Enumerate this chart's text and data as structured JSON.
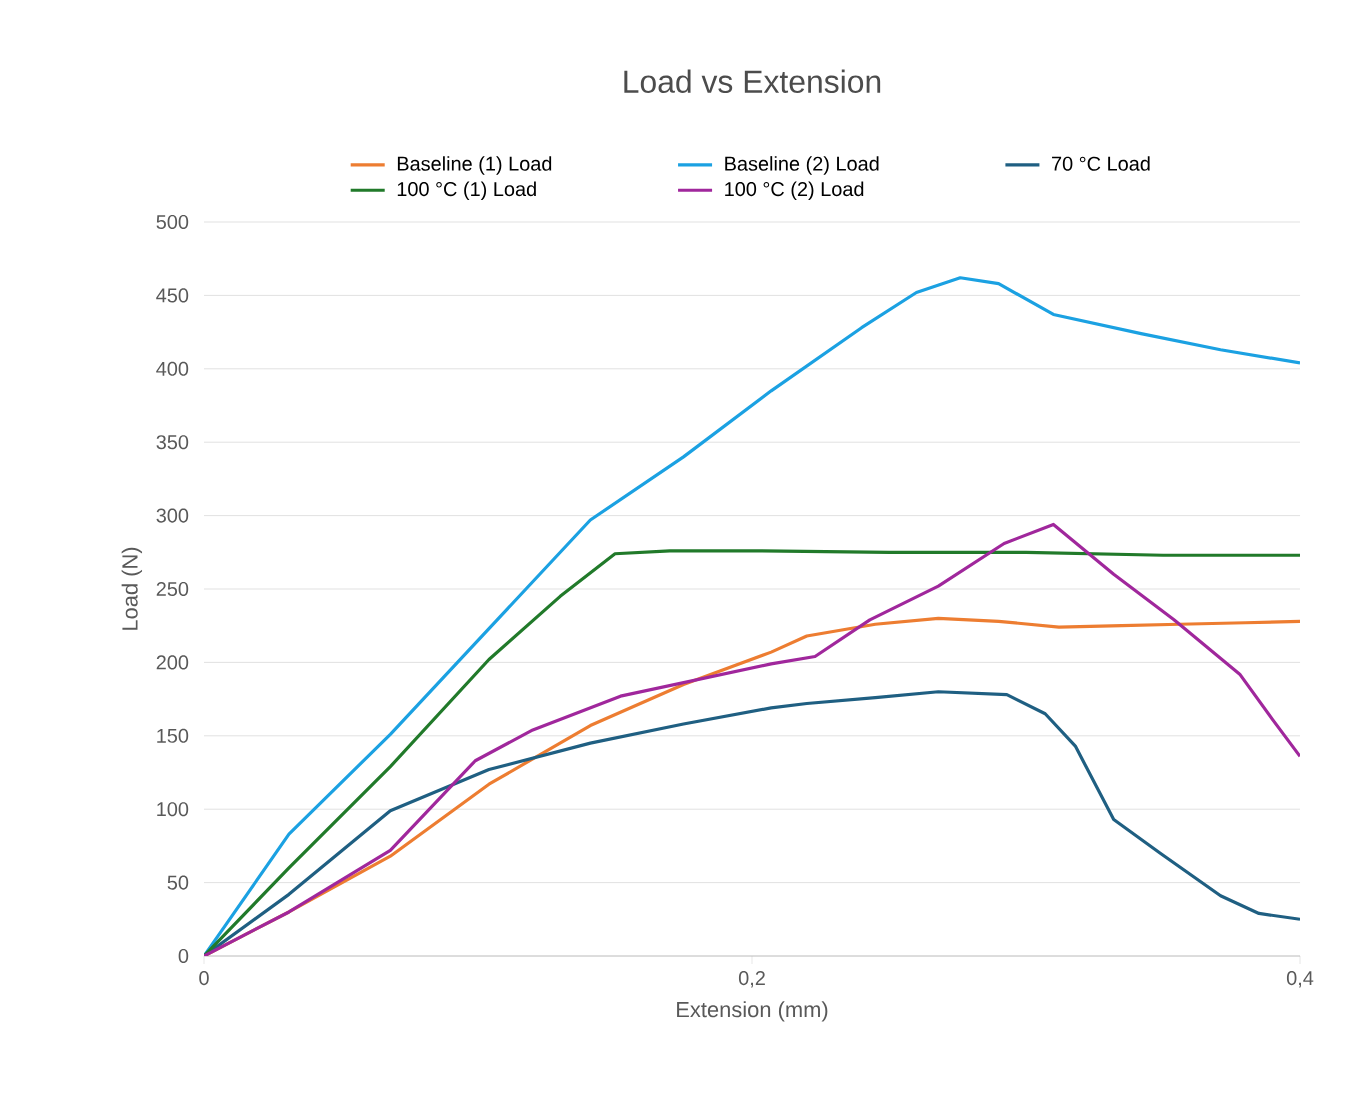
{
  "chart_data": {
    "type": "line",
    "title": "Load vs Extension",
    "xlabel": "Extension (mm)",
    "ylabel": "Load (N)",
    "xlim": [
      0,
      0.4
    ],
    "xticks": [
      0,
      {
        "value": 0.2,
        "label": "0,2"
      },
      {
        "value": 0.4,
        "label": "0,4"
      }
    ],
    "ylim": [
      0,
      500
    ],
    "yticks": [
      0,
      50,
      100,
      150,
      200,
      250,
      300,
      350,
      400,
      450,
      500
    ],
    "grid": "y",
    "legend": "top",
    "marker": "none",
    "line_style": "solid",
    "series": [
      {
        "name": "Baseline (1) Load",
        "color": "#ed7d31",
        "x": [
          0,
          0.031,
          0.068,
          0.104,
          0.141,
          0.175,
          0.207,
          0.22,
          0.245,
          0.268,
          0.29,
          0.312,
          0.335,
          0.356,
          0.38,
          0.4
        ],
        "values": [
          0,
          30,
          68,
          117,
          157,
          185,
          207,
          218,
          226,
          230,
          228,
          224,
          225,
          226,
          227,
          228
        ]
      },
      {
        "name": "Baseline (2) Load",
        "color": "#1ba1e2",
        "x": [
          0,
          0.031,
          0.068,
          0.1,
          0.141,
          0.175,
          0.207,
          0.24,
          0.26,
          0.276,
          0.29,
          0.31,
          0.342,
          0.371,
          0.4
        ],
        "values": [
          0,
          83,
          151,
          215,
          297,
          340,
          385,
          428,
          452,
          462,
          458,
          437,
          424,
          413,
          404
        ]
      },
      {
        "name": "70 °C Load",
        "color": "#1f5f82",
        "x": [
          0,
          0.031,
          0.068,
          0.104,
          0.141,
          0.175,
          0.207,
          0.22,
          0.245,
          0.268,
          0.293,
          0.307,
          0.318,
          0.332,
          0.349,
          0.371,
          0.385,
          0.4
        ],
        "values": [
          0,
          42,
          99,
          127,
          145,
          158,
          169,
          172,
          176,
          180,
          178,
          165,
          143,
          93,
          70,
          41,
          29,
          25
        ]
      },
      {
        "name": "100 °C (1) Load",
        "color": "#217a2a",
        "x": [
          0,
          0.031,
          0.068,
          0.104,
          0.13,
          0.15,
          0.17,
          0.2,
          0.25,
          0.3,
          0.35,
          0.4
        ],
        "values": [
          0,
          60,
          129,
          202,
          245,
          274,
          276,
          276,
          275,
          275,
          273,
          273
        ]
      },
      {
        "name": "100 °C (2) Load",
        "color": "#a0279c",
        "x": [
          0,
          0.031,
          0.068,
          0.099,
          0.12,
          0.152,
          0.207,
          0.223,
          0.243,
          0.268,
          0.292,
          0.31,
          0.332,
          0.354,
          0.378,
          0.39,
          0.4
        ],
        "values": [
          0,
          30,
          72,
          133,
          154,
          177,
          199,
          204,
          229,
          252,
          281,
          294,
          260,
          229,
          192,
          161,
          136
        ]
      }
    ]
  }
}
